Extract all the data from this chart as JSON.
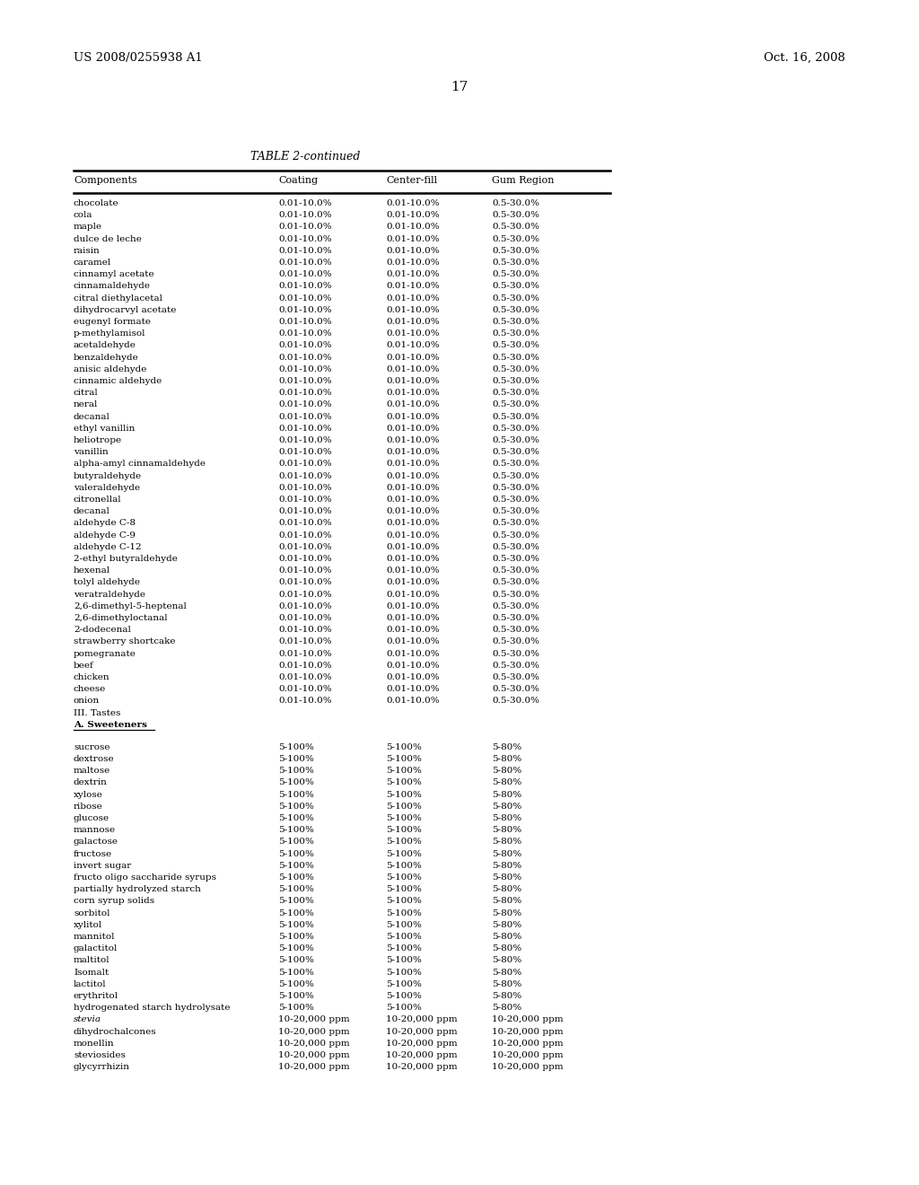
{
  "header_left": "US 2008/0255938 A1",
  "header_right": "Oct. 16, 2008",
  "page_number": "17",
  "table_title": "TABLE 2-continued",
  "col_headers": [
    "Components",
    "Coating",
    "Center-fill",
    "Gum Region"
  ],
  "rows": [
    [
      "chocolate",
      "0.01-10.0%",
      "0.01-10.0%",
      "0.5-30.0%"
    ],
    [
      "cola",
      "0.01-10.0%",
      "0.01-10.0%",
      "0.5-30.0%"
    ],
    [
      "maple",
      "0.01-10.0%",
      "0.01-10.0%",
      "0.5-30.0%"
    ],
    [
      "dulce de leche",
      "0.01-10.0%",
      "0.01-10.0%",
      "0.5-30.0%"
    ],
    [
      "raisin",
      "0.01-10.0%",
      "0.01-10.0%",
      "0.5-30.0%"
    ],
    [
      "caramel",
      "0.01-10.0%",
      "0.01-10.0%",
      "0.5-30.0%"
    ],
    [
      "cinnamyl acetate",
      "0.01-10.0%",
      "0.01-10.0%",
      "0.5-30.0%"
    ],
    [
      "cinnamaldehyde",
      "0.01-10.0%",
      "0.01-10.0%",
      "0.5-30.0%"
    ],
    [
      "citral diethylacetal",
      "0.01-10.0%",
      "0.01-10.0%",
      "0.5-30.0%"
    ],
    [
      "dihydrocarvyl acetate",
      "0.01-10.0%",
      "0.01-10.0%",
      "0.5-30.0%"
    ],
    [
      "eugenyl formate",
      "0.01-10.0%",
      "0.01-10.0%",
      "0.5-30.0%"
    ],
    [
      "p-methylamisol",
      "0.01-10.0%",
      "0.01-10.0%",
      "0.5-30.0%"
    ],
    [
      "acetaldehyde",
      "0.01-10.0%",
      "0.01-10.0%",
      "0.5-30.0%"
    ],
    [
      "benzaldehyde",
      "0.01-10.0%",
      "0.01-10.0%",
      "0.5-30.0%"
    ],
    [
      "anisic aldehyde",
      "0.01-10.0%",
      "0.01-10.0%",
      "0.5-30.0%"
    ],
    [
      "cinnamic aldehyde",
      "0.01-10.0%",
      "0.01-10.0%",
      "0.5-30.0%"
    ],
    [
      "citral",
      "0.01-10.0%",
      "0.01-10.0%",
      "0.5-30.0%"
    ],
    [
      "neral",
      "0.01-10.0%",
      "0.01-10.0%",
      "0.5-30.0%"
    ],
    [
      "decanal",
      "0.01-10.0%",
      "0.01-10.0%",
      "0.5-30.0%"
    ],
    [
      "ethyl vanillin",
      "0.01-10.0%",
      "0.01-10.0%",
      "0.5-30.0%"
    ],
    [
      "heliotrope",
      "0.01-10.0%",
      "0.01-10.0%",
      "0.5-30.0%"
    ],
    [
      "vanillin",
      "0.01-10.0%",
      "0.01-10.0%",
      "0.5-30.0%"
    ],
    [
      "alpha-amyl cinnamaldehyde",
      "0.01-10.0%",
      "0.01-10.0%",
      "0.5-30.0%"
    ],
    [
      "butyraldehyde",
      "0.01-10.0%",
      "0.01-10.0%",
      "0.5-30.0%"
    ],
    [
      "valeraldehyde",
      "0.01-10.0%",
      "0.01-10.0%",
      "0.5-30.0%"
    ],
    [
      "citronellal",
      "0.01-10.0%",
      "0.01-10.0%",
      "0.5-30.0%"
    ],
    [
      "decanal",
      "0.01-10.0%",
      "0.01-10.0%",
      "0.5-30.0%"
    ],
    [
      "aldehyde C-8",
      "0.01-10.0%",
      "0.01-10.0%",
      "0.5-30.0%"
    ],
    [
      "aldehyde C-9",
      "0.01-10.0%",
      "0.01-10.0%",
      "0.5-30.0%"
    ],
    [
      "aldehyde C-12",
      "0.01-10.0%",
      "0.01-10.0%",
      "0.5-30.0%"
    ],
    [
      "2-ethyl butyraldehyde",
      "0.01-10.0%",
      "0.01-10.0%",
      "0.5-30.0%"
    ],
    [
      "hexenal",
      "0.01-10.0%",
      "0.01-10.0%",
      "0.5-30.0%"
    ],
    [
      "tolyl aldehyde",
      "0.01-10.0%",
      "0.01-10.0%",
      "0.5-30.0%"
    ],
    [
      "veratraldehyde",
      "0.01-10.0%",
      "0.01-10.0%",
      "0.5-30.0%"
    ],
    [
      "2,6-dimethyl-5-heptenal",
      "0.01-10.0%",
      "0.01-10.0%",
      "0.5-30.0%"
    ],
    [
      "2,6-dimethyloctanal",
      "0.01-10.0%",
      "0.01-10.0%",
      "0.5-30.0%"
    ],
    [
      "2-dodecenal",
      "0.01-10.0%",
      "0.01-10.0%",
      "0.5-30.0%"
    ],
    [
      "strawberry shortcake",
      "0.01-10.0%",
      "0.01-10.0%",
      "0.5-30.0%"
    ],
    [
      "pomegranate",
      "0.01-10.0%",
      "0.01-10.0%",
      "0.5-30.0%"
    ],
    [
      "beef",
      "0.01-10.0%",
      "0.01-10.0%",
      "0.5-30.0%"
    ],
    [
      "chicken",
      "0.01-10.0%",
      "0.01-10.0%",
      "0.5-30.0%"
    ],
    [
      "cheese",
      "0.01-10.0%",
      "0.01-10.0%",
      "0.5-30.0%"
    ],
    [
      "onion",
      "0.01-10.0%",
      "0.01-10.0%",
      "0.5-30.0%"
    ]
  ],
  "sweetener_rows": [
    [
      "sucrose",
      "5-100%",
      "5-100%",
      "5-80%"
    ],
    [
      "dextrose",
      "5-100%",
      "5-100%",
      "5-80%"
    ],
    [
      "maltose",
      "5-100%",
      "5-100%",
      "5-80%"
    ],
    [
      "dextrin",
      "5-100%",
      "5-100%",
      "5-80%"
    ],
    [
      "xylose",
      "5-100%",
      "5-100%",
      "5-80%"
    ],
    [
      "ribose",
      "5-100%",
      "5-100%",
      "5-80%"
    ],
    [
      "glucose",
      "5-100%",
      "5-100%",
      "5-80%"
    ],
    [
      "mannose",
      "5-100%",
      "5-100%",
      "5-80%"
    ],
    [
      "galactose",
      "5-100%",
      "5-100%",
      "5-80%"
    ],
    [
      "fructose",
      "5-100%",
      "5-100%",
      "5-80%"
    ],
    [
      "invert sugar",
      "5-100%",
      "5-100%",
      "5-80%"
    ],
    [
      "fructo oligo saccharide syrups",
      "5-100%",
      "5-100%",
      "5-80%"
    ],
    [
      "partially hydrolyzed starch",
      "5-100%",
      "5-100%",
      "5-80%"
    ],
    [
      "corn syrup solids",
      "5-100%",
      "5-100%",
      "5-80%"
    ],
    [
      "sorbitol",
      "5-100%",
      "5-100%",
      "5-80%"
    ],
    [
      "xylitol",
      "5-100%",
      "5-100%",
      "5-80%"
    ],
    [
      "mannitol",
      "5-100%",
      "5-100%",
      "5-80%"
    ],
    [
      "galactitol",
      "5-100%",
      "5-100%",
      "5-80%"
    ],
    [
      "maltitol",
      "5-100%",
      "5-100%",
      "5-80%"
    ],
    [
      "Isomalt",
      "5-100%",
      "5-100%",
      "5-80%"
    ],
    [
      "lactitol",
      "5-100%",
      "5-100%",
      "5-80%"
    ],
    [
      "erythritol",
      "5-100%",
      "5-100%",
      "5-80%"
    ],
    [
      "hydrogenated starch hydrolysate",
      "5-100%",
      "5-100%",
      "5-80%"
    ],
    [
      "stevia",
      "10-20,000 ppm",
      "10-20,000 ppm",
      "10-20,000 ppm"
    ],
    [
      "dihydrochalcones",
      "10-20,000 ppm",
      "10-20,000 ppm",
      "10-20,000 ppm"
    ],
    [
      "monellin",
      "10-20,000 ppm",
      "10-20,000 ppm",
      "10-20,000 ppm"
    ],
    [
      "steviosides",
      "10-20,000 ppm",
      "10-20,000 ppm",
      "10-20,000 ppm"
    ],
    [
      "glycyrrhizin",
      "10-20,000 ppm",
      "10-20,000 ppm",
      "10-20,000 ppm"
    ]
  ],
  "stevia_italic": true,
  "bg_color": "#ffffff",
  "text_color": "#000000"
}
